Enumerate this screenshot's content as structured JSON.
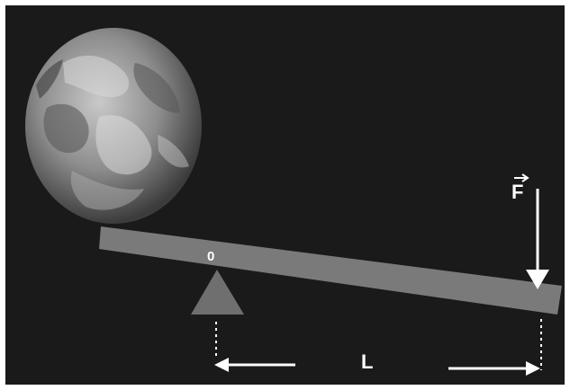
{
  "diagram": {
    "pivot_label": "0",
    "force_label": "F",
    "length_label": "L",
    "colors": {
      "background": "#1a1a1a",
      "frame": "#ffffff",
      "lever": "#7a7a7a",
      "fulcrum": "#6f6f6f",
      "arrows": "#ffffff",
      "earth_light": "#bdbdbd",
      "earth_dark": "#4a4a4a"
    }
  }
}
